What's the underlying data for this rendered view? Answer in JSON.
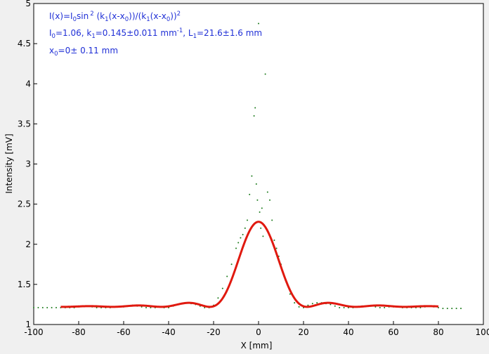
{
  "chart_data": {
    "type": "scatter",
    "title": "",
    "xlabel": "X [mm]",
    "ylabel": "Intensity [mV]",
    "xlim": [
      -100,
      100
    ],
    "ylim": [
      1,
      5
    ],
    "grid": false,
    "xticks": [
      -100,
      -80,
      -60,
      -40,
      -20,
      0,
      20,
      40,
      60,
      80,
      100
    ],
    "xtick_labels": [
      "-100",
      "-80",
      "-60",
      "-40",
      "-20",
      "0",
      "20",
      "40",
      "60",
      "80",
      "100"
    ],
    "yticks": [
      1,
      1.5,
      2,
      2.5,
      3,
      3.5,
      4,
      4.5,
      5
    ],
    "ytick_labels": [
      "1",
      "1.5",
      "2",
      "2.5",
      "3",
      "3.5",
      "4",
      "4.5",
      "5"
    ],
    "annotation": {
      "formula": {
        "a": "I(x)=I",
        "b": "0",
        "c": "sin",
        "d": "2",
        "e": " (k",
        "f": "1",
        "g": "(x-x",
        "h": "0",
        "i": "))/(k",
        "j": "1",
        "k": "(x-x",
        "l": "0",
        "m": "))",
        "n": "2"
      },
      "params": {
        "a": "I",
        "b": "0",
        "c": "=1.06,  k",
        "d": "1",
        "e": "=0.145±0.011 mm",
        "f": "-1",
        "g": ",   L",
        "h": "1",
        "i": "=21.6±1.6 mm"
      },
      "x0": {
        "a": "x",
        "b": "0",
        "c": "=0±  0.11 mm"
      }
    },
    "fit": {
      "I0": 1.06,
      "k1": 0.145,
      "x0": 0,
      "baseline": 1.22,
      "x_range": [
        -88,
        80
      ],
      "color": "#e0190f"
    },
    "series": [
      {
        "color": "#1a7a1a",
        "x": [
          -100,
          -98,
          -96,
          -94,
          -92,
          -90,
          -88,
          -86,
          -84,
          -82,
          -80,
          -78,
          -76,
          -74,
          -72,
          -70,
          -68,
          -66,
          -64,
          -62,
          -60,
          -58,
          -56,
          -54,
          -52,
          -50,
          -48,
          -46,
          -44,
          -42,
          -40,
          -38,
          -36,
          -34,
          -32,
          -30,
          -28,
          -26,
          -24,
          -22,
          -20,
          -18,
          -16,
          -14,
          -12,
          -10,
          -9,
          -8,
          -7,
          -6,
          -5,
          -4,
          -3,
          -2,
          -1.5,
          -1,
          -0.5,
          0,
          0.5,
          1,
          1.5,
          2,
          3,
          4,
          5,
          6,
          7,
          8,
          9,
          10,
          12,
          14,
          16,
          18,
          20,
          22,
          24,
          26,
          28,
          30,
          32,
          34,
          36,
          38,
          40,
          42,
          44,
          46,
          48,
          50,
          52,
          54,
          56,
          58,
          60,
          62,
          64,
          66,
          68,
          70,
          72,
          74,
          76,
          78,
          80,
          82,
          84,
          86,
          88,
          90
        ],
        "y": [
          1.21,
          1.21,
          1.21,
          1.21,
          1.21,
          1.21,
          1.21,
          1.21,
          1.21,
          1.21,
          1.22,
          1.23,
          1.23,
          1.22,
          1.21,
          1.21,
          1.21,
          1.21,
          1.22,
          1.22,
          1.22,
          1.23,
          1.24,
          1.23,
          1.22,
          1.21,
          1.21,
          1.21,
          1.22,
          1.21,
          1.21,
          1.23,
          1.25,
          1.26,
          1.27,
          1.26,
          1.25,
          1.23,
          1.21,
          1.21,
          1.24,
          1.33,
          1.45,
          1.6,
          1.75,
          1.95,
          2.02,
          2.08,
          2.12,
          2.2,
          2.3,
          2.62,
          2.85,
          3.6,
          3.7,
          2.75,
          2.55,
          4.75,
          2.4,
          2.2,
          2.45,
          2.1,
          4.12,
          2.65,
          2.55,
          2.3,
          2.05,
          1.95,
          1.85,
          1.75,
          1.55,
          1.38,
          1.27,
          1.22,
          1.21,
          1.24,
          1.26,
          1.27,
          1.27,
          1.26,
          1.25,
          1.23,
          1.21,
          1.21,
          1.21,
          1.21,
          1.22,
          1.23,
          1.23,
          1.23,
          1.22,
          1.21,
          1.21,
          1.22,
          1.22,
          1.22,
          1.21,
          1.21,
          1.21,
          1.21,
          1.21,
          1.22,
          1.23,
          1.22,
          1.21,
          1.2,
          1.2,
          1.2,
          1.2,
          1.2
        ]
      }
    ]
  }
}
